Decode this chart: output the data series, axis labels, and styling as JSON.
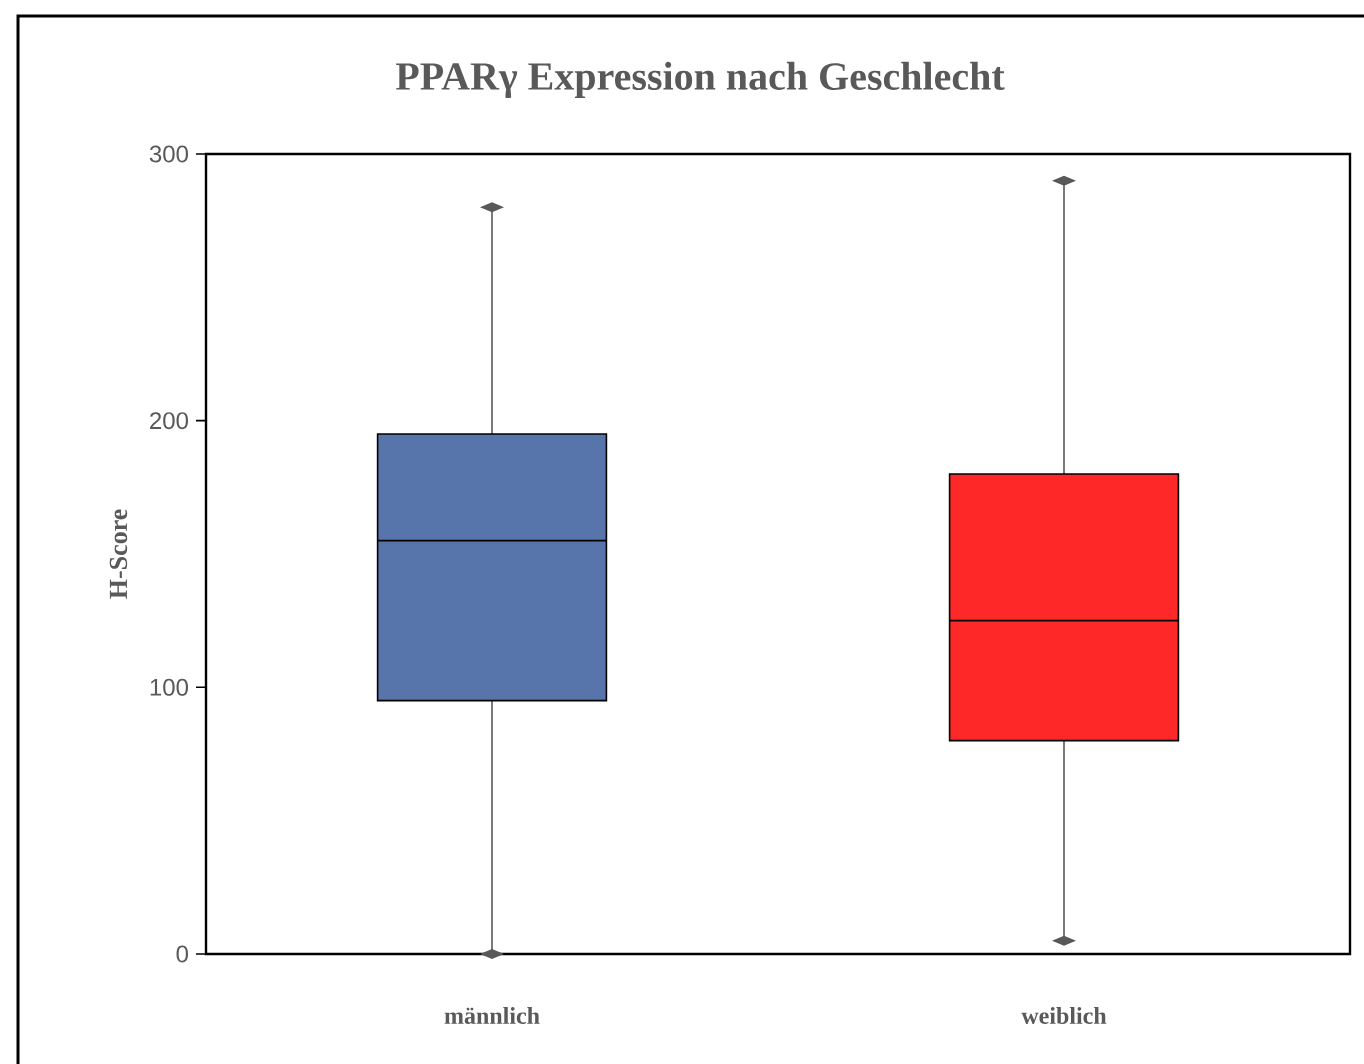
{
  "chart_data": {
    "type": "box",
    "title": "PPARγ Expression nach Geschlecht",
    "ylabel": "H-Score",
    "categories": [
      "männlich",
      "weiblich"
    ],
    "boxes": [
      {
        "low": 0,
        "q1": 95,
        "median": 155,
        "q3": 195,
        "high": 280
      },
      {
        "low": 5,
        "q1": 80,
        "median": 125,
        "q3": 180,
        "high": 290
      }
    ],
    "colors": [
      "#5875ab",
      "#ff2828"
    ],
    "ylim": [
      0,
      300
    ],
    "yticks": [
      0,
      100,
      200,
      300
    ],
    "grid": false,
    "marker": "diamond"
  }
}
